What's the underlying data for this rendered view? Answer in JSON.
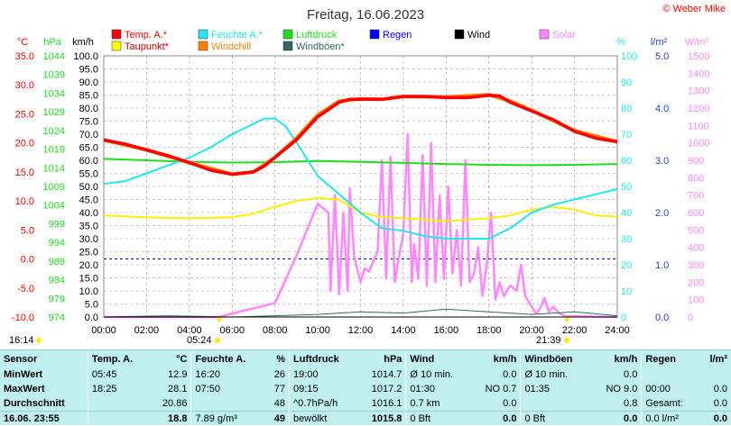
{
  "title": "Freitag, 16.06.2023",
  "copyright": "© Weber Mike",
  "colors": {
    "temp": "#ff0000",
    "dew": "#ffff00",
    "humidity": "#22e7f0",
    "windchill": "#ff8000",
    "pressure": "#22dd22",
    "gusts": "#336666",
    "rain": "#0000ff",
    "wind": "#000000",
    "solar": "#ff88ff"
  },
  "axis_units": {
    "temp": "°C",
    "pressure": "hPa",
    "wind": "km/h",
    "humidity": "%",
    "rain": "l/m²",
    "solar": "W/m²"
  },
  "legend": [
    {
      "label": "Temp. A.*",
      "color": "#ff0000"
    },
    {
      "label": "Feuchte A.*",
      "color": "#22e7f0"
    },
    {
      "label": "Luftdruck",
      "color": "#22dd22"
    },
    {
      "label": "Regen",
      "color": "#0000ff"
    },
    {
      "label": "Wind",
      "color": "#000000"
    },
    {
      "label": "Solar",
      "color": "#ff88ff"
    },
    {
      "label": "Taupunkt*",
      "color": "#ffff00"
    },
    {
      "label": "Windchill",
      "color": "#ff8000"
    },
    {
      "label": "Windböen*",
      "color": "#336666"
    }
  ],
  "axes_labels": {
    "temp": [
      "35.0",
      "30.0",
      "25.0",
      "20.0",
      "15.0",
      "10.0",
      "5.0",
      "0.0",
      "-5.0",
      "-10.0"
    ],
    "pressure": [
      "1044",
      "1039",
      "1034",
      "1029",
      "1024",
      "1019",
      "1014",
      "1009",
      "1004",
      "999",
      "994",
      "989",
      "984",
      "979",
      "974"
    ],
    "wind": [
      "100.0",
      "95.0",
      "90.0",
      "85.0",
      "80.0",
      "75.0",
      "70.0",
      "65.0",
      "60.0",
      "55.0",
      "50.0",
      "45.0",
      "40.0",
      "35.0",
      "30.0",
      "25.0",
      "20.0",
      "15.0",
      "10.0",
      "5.0",
      "0.0"
    ],
    "humidity": [
      "100",
      "90",
      "80",
      "70",
      "60",
      "50",
      "40",
      "30",
      "20",
      "10",
      "0"
    ],
    "rain": [
      "5.0",
      "4.0",
      "3.0",
      "2.0",
      "1.0",
      "0.0"
    ],
    "solar": [
      "1500",
      "1400",
      "1300",
      "1200",
      "1100",
      "1000",
      "900",
      "800",
      "700",
      "600",
      "500",
      "400",
      "300",
      "200",
      "100",
      "0"
    ],
    "time": [
      "00:00",
      "02:00",
      "04:00",
      "06:00",
      "08:00",
      "10:00",
      "12:00",
      "14:00",
      "16:00",
      "18:00",
      "20:00",
      "22:00",
      "24:00"
    ]
  },
  "sun": {
    "sunrise_label": "05:24",
    "sunset_label": "21:39",
    "left_mark": "16:14"
  },
  "chart_data": {
    "type": "line",
    "title": "Freitag, 16.06.2023",
    "x_unit": "hour",
    "xlim": [
      0,
      24
    ],
    "series": [
      {
        "name": "Temp. A.*",
        "unit": "°C",
        "ylim": [
          -10,
          35
        ],
        "x": [
          0,
          1,
          2,
          3,
          4,
          5,
          6,
          7,
          7.5,
          8,
          9,
          10,
          11,
          11.5,
          12,
          13,
          14,
          15,
          16,
          17,
          17.5,
          18,
          18.5,
          19,
          20,
          21,
          22,
          23,
          24
        ],
        "y": [
          20.5,
          19.8,
          18.8,
          17.8,
          16.6,
          15.3,
          14.6,
          15.0,
          16.0,
          17.5,
          20.5,
          24.5,
          27.0,
          27.5,
          27.5,
          27.5,
          28.0,
          28.0,
          27.8,
          27.8,
          28.0,
          28.2,
          28.1,
          27.0,
          25.5,
          24.0,
          22.0,
          20.8,
          20.2
        ]
      },
      {
        "name": "Windchill",
        "unit": "°C",
        "ylim": [
          -10,
          35
        ],
        "x": [
          0,
          2,
          4,
          6,
          7,
          8,
          9,
          10,
          11,
          12,
          13,
          14,
          16,
          18,
          19,
          20,
          22,
          24
        ],
        "y": [
          20.5,
          18.8,
          16.6,
          14.6,
          15.0,
          17.5,
          20.8,
          24.8,
          27.2,
          27.6,
          27.5,
          28.0,
          27.9,
          28.3,
          27.2,
          25.6,
          22.1,
          20.2
        ]
      },
      {
        "name": "Taupunkt*",
        "unit": "°C",
        "ylim": [
          -10,
          35
        ],
        "x": [
          0,
          2,
          4,
          6,
          7,
          8,
          9,
          10,
          11,
          12,
          13,
          14,
          15,
          16,
          17,
          18,
          19,
          20,
          21,
          22,
          23,
          24
        ],
        "y": [
          7.5,
          7.2,
          7.0,
          7.2,
          7.8,
          9.0,
          10.0,
          10.5,
          10.2,
          8.0,
          7.2,
          7.0,
          6.8,
          6.5,
          6.8,
          7.0,
          7.5,
          8.5,
          9.0,
          8.5,
          7.5,
          7.3
        ]
      },
      {
        "name": "Feuchte A.*",
        "unit": "%",
        "ylim": [
          0,
          100
        ],
        "x": [
          0,
          1,
          2,
          3,
          4,
          5,
          6,
          7,
          7.5,
          8,
          8.5,
          9,
          10,
          11,
          12,
          13,
          14,
          15,
          16,
          17,
          18,
          19,
          20,
          21,
          22,
          23,
          24
        ],
        "y": [
          51,
          52,
          55,
          58,
          61,
          65,
          70,
          74,
          76,
          76,
          73,
          67,
          54,
          47,
          40,
          34,
          33,
          31,
          30,
          30,
          30,
          34,
          40,
          43,
          45,
          47,
          49
        ]
      },
      {
        "name": "Luftdruck",
        "unit": "hPa",
        "ylim": [
          974,
          1044
        ],
        "x": [
          0,
          2,
          4,
          6,
          8,
          10,
          12,
          14,
          16,
          18,
          20,
          22,
          24
        ],
        "y": [
          1016.4,
          1016.0,
          1015.6,
          1015.4,
          1015.5,
          1015.8,
          1015.6,
          1015.3,
          1015.0,
          1014.8,
          1014.7,
          1014.8,
          1015.0
        ]
      },
      {
        "name": "Wind",
        "unit": "km/h",
        "ylim": [
          0,
          100
        ],
        "x": [
          0,
          4,
          8,
          12,
          16,
          20,
          24
        ],
        "y": [
          0,
          0,
          0,
          0,
          0,
          0,
          0
        ]
      },
      {
        "name": "Windböen*",
        "unit": "km/h",
        "ylim": [
          0,
          100
        ],
        "x": [
          0,
          3,
          6,
          8,
          10,
          12,
          14,
          16,
          18,
          20,
          22,
          24
        ],
        "y": [
          0,
          0.5,
          0,
          0.5,
          1,
          2,
          1.5,
          3,
          2,
          1,
          2,
          0.5
        ]
      },
      {
        "name": "Regen",
        "unit": "l/m²",
        "ylim": [
          0,
          5
        ],
        "x": [
          0,
          24
        ],
        "y": [
          0,
          0
        ]
      },
      {
        "name": "Solar",
        "unit": "W/m²",
        "ylim": [
          0,
          1500
        ],
        "x": [
          0,
          5.4,
          6,
          7,
          8,
          9,
          9.5,
          10,
          10.5,
          10.6,
          10.8,
          11,
          11.2,
          11.4,
          11.5,
          11.7,
          12,
          12.2,
          12.4,
          12.8,
          13.0,
          13.2,
          13.4,
          13.6,
          13.8,
          14.0,
          14.2,
          14.4,
          14.5,
          14.7,
          14.9,
          15.1,
          15.3,
          15.5,
          15.7,
          15.9,
          16.1,
          16.3,
          16.5,
          16.7,
          16.9,
          17.1,
          17.3,
          17.5,
          17.7,
          17.9,
          18.1,
          18.3,
          18.5,
          18.7,
          19.0,
          19.3,
          19.5,
          19.7,
          20.0,
          20.2,
          20.4,
          20.6,
          20.8,
          21.0,
          21.3,
          21.6,
          24
        ],
        "y": [
          0,
          0,
          20,
          50,
          80,
          350,
          500,
          650,
          600,
          150,
          700,
          130,
          600,
          150,
          740,
          350,
          200,
          280,
          260,
          380,
          900,
          220,
          920,
          200,
          350,
          480,
          1050,
          200,
          420,
          220,
          930,
          180,
          1000,
          200,
          700,
          220,
          750,
          250,
          500,
          180,
          900,
          200,
          250,
          400,
          120,
          300,
          600,
          100,
          200,
          120,
          180,
          150,
          300,
          120,
          60,
          20,
          50,
          110,
          30,
          60,
          20,
          5,
          0
        ]
      }
    ]
  },
  "stats": {
    "headers": [
      "Sensor",
      "Temp. A.",
      "°C",
      "Feuchte A.",
      "%",
      "Luftdruck",
      "hPa",
      "Wind",
      "km/h",
      "Windböen",
      "km/h",
      "Regen",
      "l/m²"
    ],
    "rows": [
      [
        "MinWert",
        "05:45",
        "12.9",
        "16:20",
        "26",
        "19:00",
        "1014.7",
        "Ø 10 min.",
        "0.0",
        "Ø 10 min.",
        "0.0",
        "",
        ""
      ],
      [
        "MaxWert",
        "18:25",
        "28.1",
        "07:50",
        "77",
        "09:15",
        "1017.2",
        "01:30",
        "NO 0.7",
        "01:35",
        "NO 9.0",
        "00:00",
        "0.0"
      ],
      [
        "Durchschnitt",
        "",
        "20.86",
        "",
        "48",
        "^0.7hPa/h",
        "1016.1",
        "0.7 km",
        "0.0",
        "",
        "0.8",
        "Gesamt:",
        "0.0"
      ],
      [
        "16.06. 23:55",
        "",
        "18.8",
        "7.89 g/m³",
        "49",
        "bewölkt",
        "1015.8",
        "0 Bft",
        "0.0",
        "0 Bft",
        "0.0",
        "0.0 l/m²",
        "0.0"
      ]
    ]
  }
}
